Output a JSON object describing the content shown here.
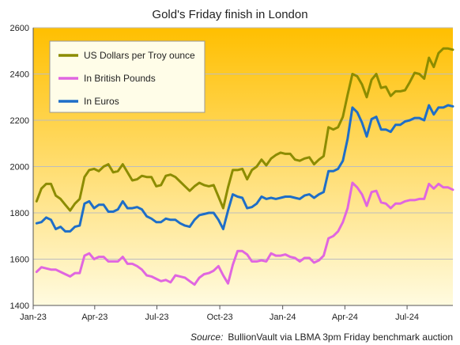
{
  "chart_data": {
    "type": "line",
    "title": "Gold's Friday finish in London",
    "source_label": "Source:",
    "source_text": "BullionVault via LBMA 3pm Friday benchmark auction",
    "xlabel": "",
    "ylabel": "",
    "ylim": [
      1400,
      2600
    ],
    "yticks": [
      1400,
      1600,
      1800,
      2000,
      2200,
      2400,
      2600
    ],
    "xlim": [
      "2023-01-01",
      "2024-09-06"
    ],
    "xticks": [
      {
        "label": "Jan-23",
        "date": "2023-01-01"
      },
      {
        "label": "Apr-23",
        "date": "2023-04-01"
      },
      {
        "label": "Jul-23",
        "date": "2023-07-01"
      },
      {
        "label": "Oct-23",
        "date": "2023-10-01"
      },
      {
        "label": "Jan-24",
        "date": "2024-01-01"
      },
      {
        "label": "Apr-24",
        "date": "2024-04-01"
      },
      {
        "label": "Jul-24",
        "date": "2024-07-01"
      }
    ],
    "grid": true,
    "legend_position": "top-left",
    "background_gradient": [
      "#ffbf00",
      "#fffbe0"
    ],
    "x": [
      "2023-01-06",
      "2023-01-13",
      "2023-01-20",
      "2023-01-27",
      "2023-02-03",
      "2023-02-10",
      "2023-02-17",
      "2023-02-24",
      "2023-03-03",
      "2023-03-10",
      "2023-03-17",
      "2023-03-24",
      "2023-03-31",
      "2023-04-07",
      "2023-04-14",
      "2023-04-21",
      "2023-04-28",
      "2023-05-05",
      "2023-05-12",
      "2023-05-19",
      "2023-05-26",
      "2023-06-02",
      "2023-06-09",
      "2023-06-16",
      "2023-06-23",
      "2023-06-30",
      "2023-07-07",
      "2023-07-14",
      "2023-07-21",
      "2023-07-28",
      "2023-08-04",
      "2023-08-11",
      "2023-08-18",
      "2023-08-25",
      "2023-09-01",
      "2023-09-08",
      "2023-09-15",
      "2023-09-22",
      "2023-09-29",
      "2023-10-06",
      "2023-10-13",
      "2023-10-20",
      "2023-10-27",
      "2023-11-03",
      "2023-11-10",
      "2023-11-17",
      "2023-11-24",
      "2023-12-01",
      "2023-12-08",
      "2023-12-15",
      "2023-12-22",
      "2023-12-29",
      "2024-01-05",
      "2024-01-12",
      "2024-01-19",
      "2024-01-26",
      "2024-02-02",
      "2024-02-09",
      "2024-02-16",
      "2024-02-23",
      "2024-03-01",
      "2024-03-08",
      "2024-03-15",
      "2024-03-22",
      "2024-03-29",
      "2024-04-05",
      "2024-04-12",
      "2024-04-19",
      "2024-04-26",
      "2024-05-03",
      "2024-05-10",
      "2024-05-17",
      "2024-05-24",
      "2024-05-31",
      "2024-06-07",
      "2024-06-14",
      "2024-06-21",
      "2024-06-28",
      "2024-07-05",
      "2024-07-12",
      "2024-07-19",
      "2024-07-26",
      "2024-08-02",
      "2024-08-09",
      "2024-08-16",
      "2024-08-23",
      "2024-08-30",
      "2024-09-06"
    ],
    "series": [
      {
        "name": "US Dollars per Troy ounce",
        "color": "#8c8c00",
        "values": [
          1850,
          1905,
          1925,
          1925,
          1875,
          1860,
          1835,
          1810,
          1840,
          1860,
          1955,
          1985,
          1990,
          1980,
          2000,
          2010,
          1975,
          1980,
          2010,
          1975,
          1940,
          1945,
          1960,
          1955,
          1955,
          1915,
          1920,
          1960,
          1965,
          1955,
          1935,
          1915,
          1895,
          1915,
          1930,
          1920,
          1915,
          1920,
          1870,
          1820,
          1910,
          1985,
          1985,
          1990,
          1945,
          1985,
          2000,
          2030,
          2005,
          2035,
          2050,
          2060,
          2055,
          2055,
          2030,
          2025,
          2035,
          2040,
          2010,
          2030,
          2045,
          2170,
          2160,
          2170,
          2215,
          2310,
          2400,
          2390,
          2355,
          2300,
          2375,
          2400,
          2340,
          2345,
          2305,
          2325,
          2325,
          2330,
          2365,
          2405,
          2400,
          2380,
          2470,
          2430,
          2490,
          2510,
          2510,
          2505
        ]
      },
      {
        "name": "In British Pounds",
        "color": "#e066e0",
        "values": [
          1545,
          1565,
          1560,
          1555,
          1555,
          1545,
          1535,
          1525,
          1540,
          1540,
          1615,
          1625,
          1600,
          1610,
          1610,
          1590,
          1590,
          1590,
          1610,
          1580,
          1580,
          1570,
          1555,
          1530,
          1525,
          1515,
          1505,
          1510,
          1500,
          1530,
          1525,
          1520,
          1505,
          1490,
          1520,
          1535,
          1540,
          1550,
          1570,
          1530,
          1495,
          1575,
          1635,
          1635,
          1620,
          1590,
          1590,
          1595,
          1590,
          1625,
          1615,
          1615,
          1620,
          1610,
          1605,
          1590,
          1605,
          1605,
          1585,
          1595,
          1615,
          1690,
          1700,
          1720,
          1760,
          1820,
          1930,
          1910,
          1880,
          1830,
          1890,
          1895,
          1845,
          1840,
          1820,
          1840,
          1840,
          1850,
          1855,
          1855,
          1860,
          1860,
          1925,
          1905,
          1925,
          1910,
          1910,
          1900
        ]
      },
      {
        "name": "In Euros",
        "color": "#1e6ec8",
        "values": [
          1755,
          1760,
          1780,
          1770,
          1730,
          1740,
          1720,
          1720,
          1740,
          1745,
          1840,
          1850,
          1820,
          1835,
          1835,
          1805,
          1805,
          1815,
          1850,
          1820,
          1820,
          1825,
          1815,
          1785,
          1775,
          1760,
          1760,
          1775,
          1770,
          1770,
          1755,
          1745,
          1740,
          1770,
          1790,
          1795,
          1800,
          1800,
          1770,
          1730,
          1810,
          1880,
          1870,
          1865,
          1820,
          1825,
          1840,
          1870,
          1860,
          1865,
          1860,
          1865,
          1870,
          1870,
          1865,
          1860,
          1875,
          1880,
          1865,
          1880,
          1890,
          1980,
          1980,
          1990,
          2025,
          2120,
          2255,
          2235,
          2190,
          2130,
          2205,
          2215,
          2160,
          2160,
          2150,
          2180,
          2180,
          2195,
          2200,
          2210,
          2210,
          2200,
          2265,
          2225,
          2255,
          2255,
          2265,
          2260
        ]
      }
    ]
  }
}
